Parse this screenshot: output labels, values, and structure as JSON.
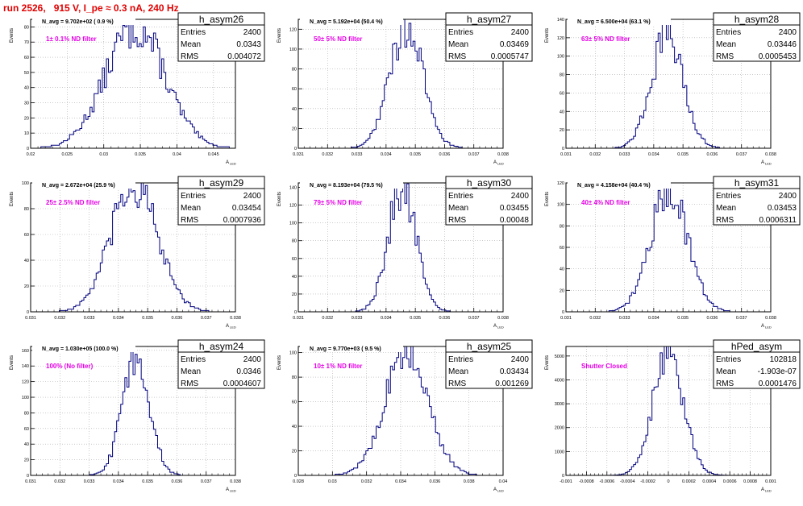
{
  "canvas_title": "run 2526,   915 V, I_pe ≈ 0.3 nA, 240 Hz",
  "colors": {
    "hist_line": "#00007f",
    "annotation": "#e600e6",
    "title": "#e00000",
    "grid": "#aaaaaa"
  },
  "chart_data": [
    {
      "type": "bar",
      "name": "h_asym26",
      "ylabel": "Events",
      "xlabel": "A_{LED}",
      "stat_labels": [
        "Entries",
        "Mean",
        "RMS"
      ],
      "stats": [
        "2400",
        "0.0343",
        "0.004072"
      ],
      "navg": "N_avg = 9.702e+02 ( 0.9 %)",
      "annotation": "1± 0.1% ND filter",
      "xlim": [
        0.02,
        0.048
      ],
      "xticks": [
        "0.02",
        "0.025",
        "0.03",
        "0.035",
        "0.04",
        "0.045"
      ],
      "ylim": [
        0,
        85
      ],
      "yticks": [
        "0",
        "10",
        "20",
        "30",
        "40",
        "50",
        "60",
        "70",
        "80"
      ],
      "grid": true,
      "mean": 0.0343,
      "rms": 0.004072,
      "peak": 80,
      "bins": 100
    },
    {
      "type": "bar",
      "name": "h_asym27",
      "ylabel": "Events",
      "xlabel": "A_{LED}",
      "stat_labels": [
        "Entries",
        "Mean",
        "RMS"
      ],
      "stats": [
        "2400",
        "0.03469",
        "0.0005747"
      ],
      "navg": "N_avg = 5.192e+04 (50.4 %)",
      "annotation": "50± 5% ND filter",
      "xlim": [
        0.031,
        0.038
      ],
      "xticks": [
        "0.031",
        "0.032",
        "0.033",
        "0.034",
        "0.035",
        "0.036",
        "0.037",
        "0.038"
      ],
      "ylim": [
        0,
        130
      ],
      "yticks": [
        "0",
        "20",
        "40",
        "60",
        "80",
        "100",
        "120"
      ],
      "grid": true,
      "mean": 0.03469,
      "rms": 0.0005747,
      "peak": 122,
      "bins": 100
    },
    {
      "type": "bar",
      "name": "h_asym28",
      "ylabel": "Events",
      "xlabel": "A_{LED}",
      "stat_labels": [
        "Entries",
        "Mean",
        "RMS"
      ],
      "stats": [
        "2400",
        "0.03446",
        "0.0005453"
      ],
      "navg": "N_avg = 6.500e+04 (63.1 %)",
      "annotation": "63± 5% ND filter",
      "xlim": [
        0.031,
        0.038
      ],
      "xticks": [
        "0.031",
        "0.032",
        "0.033",
        "0.034",
        "0.035",
        "0.036",
        "0.037",
        "0.038"
      ],
      "ylim": [
        0,
        140
      ],
      "yticks": [
        "0",
        "20",
        "40",
        "60",
        "80",
        "100",
        "120",
        "140"
      ],
      "grid": true,
      "mean": 0.03446,
      "rms": 0.0005453,
      "peak": 122,
      "bins": 100
    },
    {
      "type": "bar",
      "name": "h_asym29",
      "ylabel": "Events",
      "xlabel": "A_{LED}",
      "stat_labels": [
        "Entries",
        "Mean",
        "RMS"
      ],
      "stats": [
        "2400",
        "0.03454",
        "0.0007936"
      ],
      "navg": "N_avg = 2.672e+04 (25.9 %)",
      "annotation": "25± 2.5% ND filter",
      "xlim": [
        0.031,
        0.038
      ],
      "xticks": [
        "0.031",
        "0.032",
        "0.033",
        "0.034",
        "0.035",
        "0.036",
        "0.037",
        "0.038"
      ],
      "ylim": [
        0,
        100
      ],
      "yticks": [
        "0",
        "20",
        "40",
        "60",
        "80",
        "100"
      ],
      "grid": true,
      "mean": 0.03454,
      "rms": 0.0007936,
      "peak": 98,
      "bins": 100
    },
    {
      "type": "bar",
      "name": "h_asym30",
      "ylabel": "Events",
      "xlabel": "A_{LED}",
      "stat_labels": [
        "Entries",
        "Mean",
        "RMS"
      ],
      "stats": [
        "2400",
        "0.03455",
        "0.00048"
      ],
      "navg": "N_avg = 8.193e+04 (79.5 %)",
      "annotation": "79± 5% ND filter",
      "xlim": [
        0.031,
        0.038
      ],
      "xticks": [
        "0.031",
        "0.032",
        "0.033",
        "0.034",
        "0.035",
        "0.036",
        "0.037",
        "0.038"
      ],
      "ylim": [
        0,
        145
      ],
      "yticks": [
        "0",
        "20",
        "40",
        "60",
        "80",
        "100",
        "120",
        "140"
      ],
      "grid": true,
      "mean": 0.03455,
      "rms": 0.00048,
      "peak": 140,
      "bins": 100
    },
    {
      "type": "bar",
      "name": "h_asym31",
      "ylabel": "Events",
      "xlabel": "A_{LED}",
      "stat_labels": [
        "Entries",
        "Mean",
        "RMS"
      ],
      "stats": [
        "2400",
        "0.03453",
        "0.0006311"
      ],
      "navg": "N_avg = 4.158e+04 (40.4 %)",
      "annotation": "40± 4% ND filter",
      "xlim": [
        0.031,
        0.038
      ],
      "xticks": [
        "0.031",
        "0.032",
        "0.033",
        "0.034",
        "0.035",
        "0.036",
        "0.037",
        "0.038"
      ],
      "ylim": [
        0,
        120
      ],
      "yticks": [
        "0",
        "20",
        "40",
        "60",
        "80",
        "100",
        "120"
      ],
      "grid": true,
      "mean": 0.03453,
      "rms": 0.0006311,
      "peak": 115,
      "bins": 100
    },
    {
      "type": "bar",
      "name": "h_asym24",
      "ylabel": "Events",
      "xlabel": "A_{LED}",
      "stat_labels": [
        "Entries",
        "Mean",
        "RMS"
      ],
      "stats": [
        "2400",
        "0.0346",
        "0.0004607"
      ],
      "navg": "N_avg = 1.030e+05 (100.0 %)",
      "annotation": "100% (No filter)",
      "xlim": [
        0.031,
        0.038
      ],
      "xticks": [
        "0.031",
        "0.032",
        "0.033",
        "0.034",
        "0.035",
        "0.036",
        "0.037",
        "0.038"
      ],
      "ylim": [
        0,
        165
      ],
      "yticks": [
        "0",
        "20",
        "40",
        "60",
        "80",
        "100",
        "120",
        "140",
        "160"
      ],
      "grid": true,
      "mean": 0.0346,
      "rms": 0.0004607,
      "peak": 152,
      "bins": 100
    },
    {
      "type": "bar",
      "name": "h_asym25",
      "ylabel": "Events",
      "xlabel": "A_{LED}",
      "stat_labels": [
        "Entries",
        "Mean",
        "RMS"
      ],
      "stats": [
        "2400",
        "0.03434",
        "0.001269"
      ],
      "navg": "N_avg = 9.770e+03 ( 9.5 %)",
      "annotation": "10± 1% ND filter",
      "xlim": [
        0.028,
        0.04
      ],
      "xticks": [
        "0.028",
        "0.03",
        "0.032",
        "0.034",
        "0.036",
        "0.038",
        "0.04"
      ],
      "ylim": [
        0,
        105
      ],
      "yticks": [
        "0",
        "20",
        "40",
        "60",
        "80",
        "100"
      ],
      "grid": true,
      "mean": 0.03434,
      "rms": 0.001269,
      "peak": 100,
      "bins": 100
    },
    {
      "type": "bar",
      "name": "hPed_asym",
      "ylabel": "Events",
      "xlabel": "A_{LED}",
      "stat_labels": [
        "Entries",
        "Mean",
        "RMS"
      ],
      "stats": [
        "102818",
        "-1.903e-07",
        "0.0001476"
      ],
      "navg": "",
      "annotation": "Shutter Closed",
      "xlim": [
        -0.001,
        0.001
      ],
      "xticks": [
        "-0.001",
        "-0.0008",
        "-0.0006",
        "-0.0004",
        "-0.0002",
        "0",
        "0.0002",
        "0.0004",
        "0.0006",
        "0.0008",
        "0.001"
      ],
      "ylim": [
        0,
        5400
      ],
      "yticks": [
        "0",
        "1000",
        "2000",
        "3000",
        "4000",
        "5000"
      ],
      "grid": true,
      "mean": -1.9e-07,
      "rms": 0.0001476,
      "peak": 5200,
      "bins": 100
    }
  ]
}
